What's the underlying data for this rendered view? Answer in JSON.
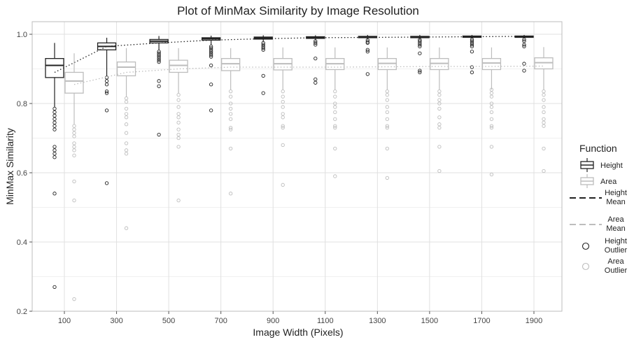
{
  "chart_data": {
    "type": "box",
    "title": "Plot of MinMax Similarity by Image Resolution",
    "xlabel": "Image Width (Pixels)",
    "ylabel": "MinMax Similarity",
    "x_categories": [
      100,
      300,
      500,
      700,
      900,
      1100,
      1300,
      1500,
      1700,
      1900
    ],
    "ylim": [
      0.2,
      1.02
    ],
    "y_ticks": [
      0.2,
      0.4,
      0.6,
      0.8,
      1.0
    ],
    "y_tick_labels": [
      "0.2",
      "0.4",
      "0.6",
      "0.8",
      "1.0"
    ],
    "grid": true,
    "legend": {
      "position": "right",
      "title": "Function",
      "items": [
        {
          "key": "height-box",
          "label": "Height"
        },
        {
          "key": "area-box",
          "label": "Area"
        },
        {
          "key": "height-mean",
          "label": "Height\nMean"
        },
        {
          "key": "area-mean",
          "label": "Area\nMean"
        },
        {
          "key": "height-outlier",
          "label": "Height\nOutlier"
        },
        {
          "key": "area-outlier",
          "label": "Area\nOutlier"
        }
      ]
    },
    "colors": {
      "height": "#222222",
      "area": "#bdbdbd",
      "grid_major": "#e0e0e0",
      "grid_minor": "#f0f0f0",
      "axis": "#555555",
      "text": "#222222"
    },
    "series": [
      {
        "name": "Height",
        "boxes": [
          {
            "x": 100,
            "whisker_low": 0.79,
            "q1": 0.875,
            "median": 0.91,
            "q3": 0.93,
            "whisker_high": 0.975,
            "outliers": [
              0.785,
              0.775,
              0.765,
              0.755,
              0.745,
              0.735,
              0.725,
              0.675,
              0.665,
              0.655,
              0.645,
              0.54,
              0.27
            ]
          },
          {
            "x": 300,
            "whisker_low": 0.88,
            "q1": 0.955,
            "median": 0.965,
            "q3": 0.975,
            "whisker_high": 0.99,
            "outliers": [
              0.875,
              0.865,
              0.855,
              0.835,
              0.83,
              0.78,
              0.57
            ]
          },
          {
            "x": 500,
            "whisker_low": 0.955,
            "q1": 0.975,
            "median": 0.98,
            "q3": 0.985,
            "whisker_high": 0.995,
            "outliers": [
              0.95,
              0.945,
              0.94,
              0.935,
              0.93,
              0.925,
              0.92,
              0.865,
              0.85,
              0.71
            ]
          },
          {
            "x": 700,
            "whisker_low": 0.97,
            "q1": 0.983,
            "median": 0.987,
            "q3": 0.99,
            "whisker_high": 0.996,
            "outliers": [
              0.965,
              0.96,
              0.955,
              0.95,
              0.945,
              0.94,
              0.935,
              0.91,
              0.855,
              0.78
            ]
          },
          {
            "x": 900,
            "whisker_low": 0.978,
            "q1": 0.986,
            "median": 0.989,
            "q3": 0.992,
            "whisker_high": 0.997,
            "outliers": [
              0.975,
              0.97,
              0.965,
              0.96,
              0.955,
              0.88,
              0.83
            ]
          },
          {
            "x": 1100,
            "whisker_low": 0.982,
            "q1": 0.988,
            "median": 0.991,
            "q3": 0.993,
            "whisker_high": 0.997,
            "outliers": [
              0.98,
              0.975,
              0.97,
              0.93,
              0.87,
              0.86
            ]
          },
          {
            "x": 1300,
            "whisker_low": 0.985,
            "q1": 0.99,
            "median": 0.992,
            "q3": 0.994,
            "whisker_high": 0.998,
            "outliers": [
              0.983,
              0.978,
              0.975,
              0.955,
              0.95,
              0.885
            ]
          },
          {
            "x": 1500,
            "whisker_low": 0.986,
            "q1": 0.99,
            "median": 0.992,
            "q3": 0.994,
            "whisker_high": 0.998,
            "outliers": [
              0.984,
              0.98,
              0.975,
              0.97,
              0.965,
              0.945,
              0.895,
              0.89
            ]
          },
          {
            "x": 1700,
            "whisker_low": 0.987,
            "q1": 0.991,
            "median": 0.993,
            "q3": 0.995,
            "whisker_high": 0.998,
            "outliers": [
              0.985,
              0.98,
              0.975,
              0.97,
              0.965,
              0.95,
              0.905,
              0.89
            ]
          },
          {
            "x": 1900,
            "whisker_low": 0.988,
            "q1": 0.991,
            "median": 0.993,
            "q3": 0.995,
            "whisker_high": 0.998,
            "outliers": [
              0.985,
              0.98,
              0.97,
              0.965,
              0.915,
              0.895
            ]
          }
        ],
        "mean_line": [
          0.89,
          0.965,
          0.975,
          0.983,
          0.987,
          0.99,
          0.991,
          0.992,
          0.993,
          0.994
        ]
      },
      {
        "name": "Area",
        "boxes": [
          {
            "x": 100,
            "whisker_low": 0.74,
            "q1": 0.83,
            "median": 0.865,
            "q3": 0.89,
            "whisker_high": 0.945,
            "outliers": [
              0.735,
              0.725,
              0.715,
              0.705,
              0.685,
              0.675,
              0.665,
              0.65,
              0.575,
              0.52,
              0.235
            ]
          },
          {
            "x": 300,
            "whisker_low": 0.82,
            "q1": 0.88,
            "median": 0.905,
            "q3": 0.92,
            "whisker_high": 0.96,
            "outliers": [
              0.815,
              0.805,
              0.785,
              0.77,
              0.76,
              0.74,
              0.715,
              0.685,
              0.665,
              0.655,
              0.44
            ]
          },
          {
            "x": 500,
            "whisker_low": 0.83,
            "q1": 0.89,
            "median": 0.91,
            "q3": 0.925,
            "whisker_high": 0.96,
            "outliers": [
              0.825,
              0.81,
              0.79,
              0.77,
              0.76,
              0.745,
              0.725,
              0.71,
              0.7,
              0.675,
              0.52
            ]
          },
          {
            "x": 700,
            "whisker_low": 0.84,
            "q1": 0.895,
            "median": 0.915,
            "q3": 0.93,
            "whisker_high": 0.96,
            "outliers": [
              0.835,
              0.82,
              0.8,
              0.785,
              0.77,
              0.755,
              0.73,
              0.725,
              0.67,
              0.54
            ]
          },
          {
            "x": 900,
            "whisker_low": 0.84,
            "q1": 0.897,
            "median": 0.915,
            "q3": 0.93,
            "whisker_high": 0.962,
            "outliers": [
              0.835,
              0.82,
              0.805,
              0.79,
              0.77,
              0.76,
              0.735,
              0.73,
              0.68,
              0.565
            ]
          },
          {
            "x": 1100,
            "whisker_low": 0.84,
            "q1": 0.898,
            "median": 0.915,
            "q3": 0.93,
            "whisker_high": 0.962,
            "outliers": [
              0.835,
              0.82,
              0.8,
              0.79,
              0.775,
              0.755,
              0.735,
              0.73,
              0.67,
              0.59
            ]
          },
          {
            "x": 1300,
            "whisker_low": 0.84,
            "q1": 0.898,
            "median": 0.916,
            "q3": 0.93,
            "whisker_high": 0.962,
            "outliers": [
              0.835,
              0.825,
              0.81,
              0.79,
              0.775,
              0.755,
              0.735,
              0.73,
              0.67,
              0.585
            ]
          },
          {
            "x": 1500,
            "whisker_low": 0.84,
            "q1": 0.898,
            "median": 0.916,
            "q3": 0.93,
            "whisker_high": 0.962,
            "outliers": [
              0.835,
              0.825,
              0.81,
              0.8,
              0.785,
              0.76,
              0.74,
              0.73,
              0.675,
              0.605
            ]
          },
          {
            "x": 1700,
            "whisker_low": 0.84,
            "q1": 0.898,
            "median": 0.917,
            "q3": 0.93,
            "whisker_high": 0.962,
            "outliers": [
              0.84,
              0.83,
              0.82,
              0.8,
              0.79,
              0.775,
              0.755,
              0.735,
              0.73,
              0.675,
              0.595
            ]
          },
          {
            "x": 1900,
            "whisker_low": 0.84,
            "q1": 0.9,
            "median": 0.918,
            "q3": 0.932,
            "whisker_high": 0.963,
            "outliers": [
              0.835,
              0.825,
              0.81,
              0.79,
              0.775,
              0.755,
              0.745,
              0.735,
              0.67,
              0.605
            ]
          }
        ],
        "mean_line": [
          0.855,
          0.89,
          0.9,
          0.905,
          0.905,
          0.905,
          0.906,
          0.907,
          0.907,
          0.908
        ]
      }
    ]
  }
}
